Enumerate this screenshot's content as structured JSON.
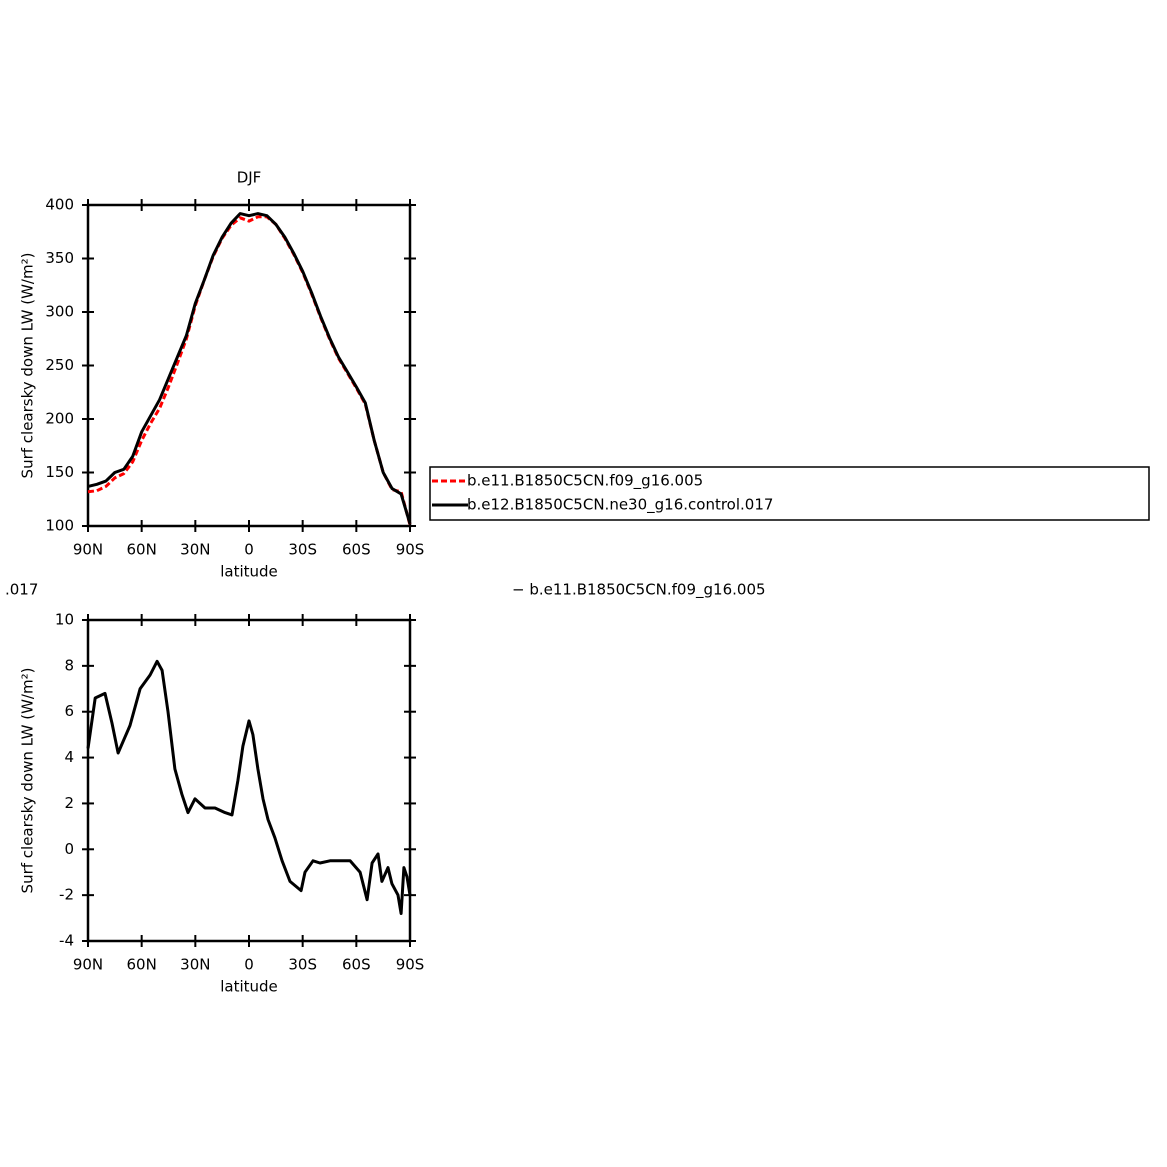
{
  "chart_data": [
    {
      "type": "line",
      "title": "DJF",
      "x_label": "latitude",
      "y_label": "Surf clearsky down LW (W/m²)",
      "xlim": [
        90,
        -90
      ],
      "xticks": [
        {
          "value": 90,
          "label": "90N"
        },
        {
          "value": 60,
          "label": "60N"
        },
        {
          "value": 30,
          "label": "30N"
        },
        0,
        {
          "value": -30,
          "label": "30S"
        },
        {
          "value": -60,
          "label": "60S"
        },
        {
          "value": -90,
          "label": "90S"
        }
      ],
      "ylim": [
        100,
        400
      ],
      "yticks": [
        100,
        150,
        200,
        250,
        300,
        350,
        400
      ],
      "legend": "right",
      "x": [
        90,
        85,
        80,
        75,
        70,
        65,
        60,
        55,
        50,
        45,
        40,
        35,
        30,
        25,
        20,
        15,
        10,
        5,
        0,
        -5,
        -10,
        -15,
        -20,
        -25,
        -30,
        -35,
        -40,
        -45,
        -50,
        -55,
        -60,
        -65,
        -70,
        -75,
        -80,
        -85,
        -90
      ],
      "series": [
        {
          "name": "b.e11.B1850C5CN.f09_g16.005",
          "color": "#ff0000",
          "style": "dashed",
          "values": [
            132,
            133,
            137,
            145,
            149,
            160,
            180,
            196,
            210,
            230,
            252,
            275,
            306,
            330,
            352,
            369,
            381,
            388,
            385,
            389,
            389,
            382,
            369,
            354,
            337,
            317,
            295,
            275,
            257,
            243,
            229,
            214,
            180,
            150,
            134,
            132,
            101
          ]
        },
        {
          "name": "b.e12.B1850C5CN.ne30_g16.control.017",
          "color": "#000000",
          "style": "solid",
          "values": [
            137,
            139,
            142,
            150,
            153,
            165,
            188,
            203,
            218,
            238,
            258,
            278,
            308,
            330,
            353,
            370,
            383,
            392,
            390,
            392,
            390,
            382,
            370,
            355,
            338,
            318,
            296,
            276,
            258,
            244,
            230,
            215,
            180,
            150,
            135,
            130,
            102
          ]
        }
      ]
    },
    {
      "type": "line",
      "x_label": "latitude",
      "y_label": "Surf clearsky down LW (W/m²)",
      "xlim": [
        90,
        -90
      ],
      "xticks": [
        {
          "value": 90,
          "label": "90N"
        },
        {
          "value": 60,
          "label": "60N"
        },
        {
          "value": 30,
          "label": "30N"
        },
        0,
        {
          "value": -30,
          "label": "30S"
        },
        {
          "value": -60,
          "label": "60S"
        },
        {
          "value": -90,
          "label": "90S"
        }
      ],
      "ylim": [
        -4,
        10
      ],
      "yticks": [
        -4,
        -2,
        0,
        2,
        4,
        6,
        8,
        10
      ],
      "annotations": [
        ".017",
        "− b.e11.B1850C5CN.f09_g16.005"
      ],
      "x": [
        90,
        86,
        80.5,
        76.6,
        73.2,
        66.5,
        60.9,
        55.3,
        51.4,
        48.6,
        45.3,
        41.4,
        37.5,
        34.1,
        30.2,
        24.6,
        19,
        13.4,
        9.5,
        6.2,
        3.4,
        0,
        -2.2,
        -5,
        -7.8,
        -10.6,
        -14.5,
        -18.5,
        -22.9,
        -29.1,
        -31.3,
        -35.8,
        -39.7,
        -45.3,
        -50.9,
        -56.5,
        -62.1,
        -66,
        -68.8,
        -72.1,
        -74.3,
        -77.7,
        -79.9,
        -83.3,
        -85,
        -86.6,
        -88.3,
        -90
      ],
      "series": [
        {
          "color": "#000000",
          "style": "solid",
          "values": [
            4.4,
            6.6,
            6.8,
            5.5,
            4.2,
            5.4,
            7.0,
            7.6,
            8.2,
            7.8,
            6.0,
            3.5,
            2.4,
            1.6,
            2.2,
            1.8,
            1.8,
            1.6,
            1.5,
            3.0,
            4.5,
            5.6,
            5.0,
            3.5,
            2.2,
            1.3,
            0.5,
            -0.5,
            -1.4,
            -1.8,
            -1.0,
            -0.5,
            -0.6,
            -0.5,
            -0.5,
            -0.5,
            -1.0,
            -2.2,
            -0.6,
            -0.2,
            -1.4,
            -0.8,
            -1.5,
            -2.0,
            -2.8,
            -0.8,
            -1.2,
            -2.0
          ]
        }
      ]
    }
  ]
}
